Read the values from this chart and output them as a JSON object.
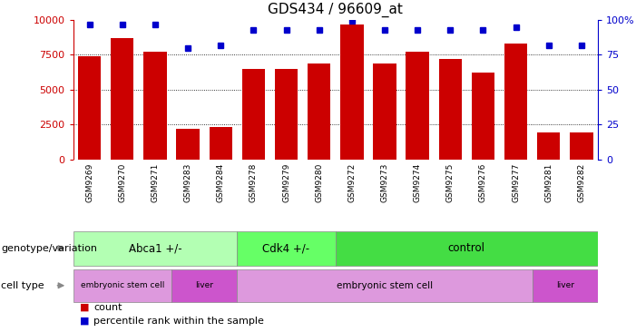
{
  "title": "GDS434 / 96609_at",
  "samples": [
    "GSM9269",
    "GSM9270",
    "GSM9271",
    "GSM9283",
    "GSM9284",
    "GSM9278",
    "GSM9279",
    "GSM9280",
    "GSM9272",
    "GSM9273",
    "GSM9274",
    "GSM9275",
    "GSM9276",
    "GSM9277",
    "GSM9281",
    "GSM9282"
  ],
  "counts": [
    7400,
    8700,
    7700,
    2200,
    2350,
    6500,
    6500,
    6900,
    9700,
    6900,
    7700,
    7200,
    6200,
    8300,
    1900,
    1950
  ],
  "percentiles": [
    97,
    97,
    97,
    80,
    82,
    93,
    93,
    93,
    99,
    93,
    93,
    93,
    93,
    95,
    82,
    82
  ],
  "bar_color": "#cc0000",
  "dot_color": "#0000cc",
  "ylim_left": [
    0,
    10000
  ],
  "ylim_right": [
    0,
    100
  ],
  "yticks_left": [
    0,
    2500,
    5000,
    7500,
    10000
  ],
  "yticks_right": [
    0,
    25,
    50,
    75,
    100
  ],
  "genotype_groups": [
    {
      "label": "Abca1 +/-",
      "start": 0,
      "end": 5,
      "color": "#b3ffb3"
    },
    {
      "label": "Cdk4 +/-",
      "start": 5,
      "end": 8,
      "color": "#66ff66"
    },
    {
      "label": "control",
      "start": 8,
      "end": 16,
      "color": "#44dd44"
    }
  ],
  "celltype_groups": [
    {
      "label": "embryonic stem cell",
      "start": 0,
      "end": 3,
      "color": "#dd99dd"
    },
    {
      "label": "liver",
      "start": 3,
      "end": 5,
      "color": "#cc55cc"
    },
    {
      "label": "embryonic stem cell",
      "start": 5,
      "end": 14,
      "color": "#dd99dd"
    },
    {
      "label": "liver",
      "start": 14,
      "end": 16,
      "color": "#cc55cc"
    }
  ],
  "legend_count_label": "count",
  "legend_percentile_label": "percentile rank within the sample",
  "genotype_label": "genotype/variation",
  "celltype_label": "cell type",
  "background_color": "#ffffff",
  "grid_color": "#000000",
  "axis_label_color_left": "#cc0000",
  "axis_label_color_right": "#0000cc",
  "xtick_bg": "#cccccc"
}
